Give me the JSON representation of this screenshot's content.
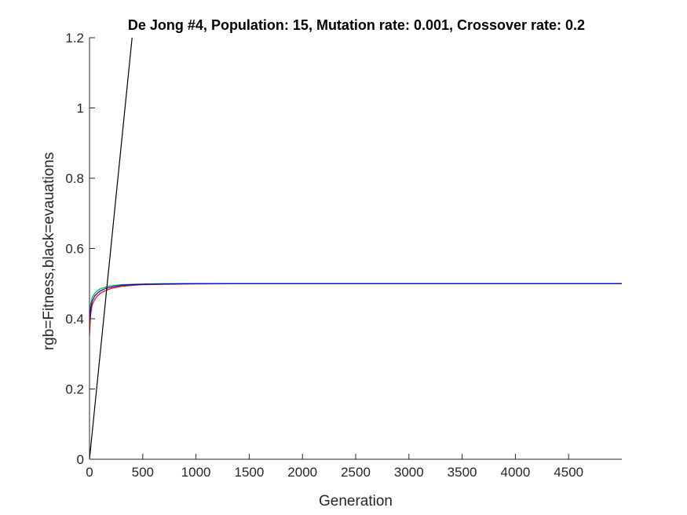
{
  "chart_data": {
    "type": "line",
    "title": "De Jong #4, Population: 15, Mutation rate: 0.001, Crossover rate: 0.2",
    "xlabel": "Generation",
    "ylabel": "rgb=Fitness,black=evauations",
    "xlim": [
      0,
      5000
    ],
    "ylim": [
      0,
      1.2
    ],
    "xticks": [
      0,
      500,
      1000,
      1500,
      2000,
      2500,
      3000,
      3500,
      4000,
      4500
    ],
    "xtick_labels": [
      "0",
      "500",
      "1000",
      "1500",
      "2000",
      "2500",
      "3000",
      "3500",
      "4000",
      "4500"
    ],
    "yticks": [
      0,
      0.2,
      0.4,
      0.6,
      0.8,
      1,
      1.2
    ],
    "ytick_labels": [
      "0",
      "0.2",
      "0.4",
      "0.6",
      "0.8",
      "1",
      "1.2"
    ],
    "grid": false,
    "legend": "none",
    "series": [
      {
        "color": "#ff0000",
        "x": [
          0,
          10,
          25,
          50,
          75,
          100,
          150,
          200,
          300,
          400,
          500,
          700,
          1000,
          1500,
          2000,
          2500,
          3000,
          3500,
          4000,
          4500,
          5000
        ],
        "values": [
          0.35,
          0.41,
          0.44,
          0.455,
          0.465,
          0.472,
          0.48,
          0.486,
          0.492,
          0.495,
          0.497,
          0.498,
          0.499,
          0.5,
          0.5,
          0.5,
          0.5,
          0.5,
          0.5,
          0.5,
          0.5
        ]
      },
      {
        "color": "#00bb00",
        "x": [
          0,
          10,
          25,
          50,
          75,
          100,
          150,
          200,
          300,
          400,
          500,
          700,
          1000,
          1500,
          2000,
          2500,
          3000,
          3500,
          4000,
          4500,
          5000
        ],
        "values": [
          0.4,
          0.44,
          0.46,
          0.473,
          0.48,
          0.485,
          0.49,
          0.494,
          0.497,
          0.498,
          0.499,
          0.5,
          0.5,
          0.5,
          0.5,
          0.5,
          0.5,
          0.5,
          0.5,
          0.5,
          0.5
        ]
      },
      {
        "color": "#0000ff",
        "x": [
          0,
          10,
          25,
          50,
          75,
          100,
          150,
          200,
          300,
          400,
          500,
          700,
          1000,
          1500,
          2000,
          2500,
          3000,
          3500,
          4000,
          4500,
          5000
        ],
        "values": [
          0.39,
          0.425,
          0.45,
          0.465,
          0.473,
          0.479,
          0.486,
          0.49,
          0.495,
          0.497,
          0.498,
          0.499,
          0.5,
          0.5,
          0.5,
          0.5,
          0.5,
          0.5,
          0.5,
          0.5,
          0.5
        ]
      },
      {
        "color": "#000000",
        "x": [
          0,
          500
        ],
        "values": [
          0,
          1.5
        ]
      }
    ]
  }
}
